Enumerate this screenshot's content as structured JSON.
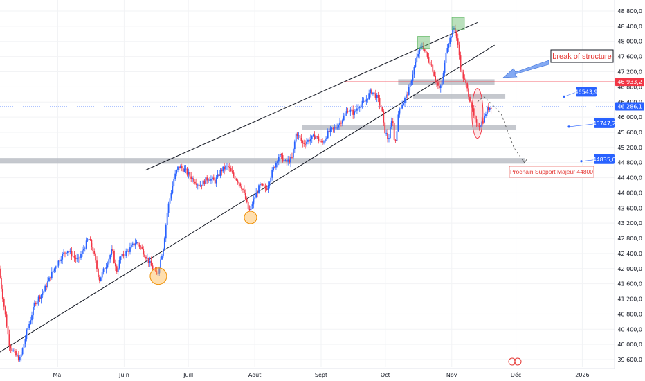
{
  "chart_data": {
    "type": "candlestick",
    "title": "",
    "xlabel": "",
    "ylabel": "",
    "ylim": [
      39500,
      48850
    ],
    "y_ticks": [
      "48 800,0",
      "48 400,0",
      "48 000,0",
      "47 600,0",
      "47 200,0",
      "46 800,0",
      "46 400,0",
      "46 000,0",
      "45 600,0",
      "45 200,0",
      "44 800,0",
      "44 400,0",
      "44 000,0",
      "43 600,0",
      "43 200,0",
      "42 800,0",
      "42 400,0",
      "42 000,0",
      "41 600,0",
      "41 200,0",
      "40 800,0",
      "40 400,0",
      "40 000,0",
      "39 600,0"
    ],
    "x_ticks": [
      {
        "label": "Mai",
        "day": 36
      },
      {
        "label": "Juin",
        "day": 67
      },
      {
        "label": "Juill",
        "day": 97
      },
      {
        "label": "Août",
        "day": 128
      },
      {
        "label": "Sept",
        "day": 159
      },
      {
        "label": "Oct",
        "day": 189
      },
      {
        "label": "Nov",
        "day": 220
      },
      {
        "label": "Déc",
        "day": 250
      },
      {
        "label": "2026",
        "day": 281
      }
    ],
    "x_range": [
      9,
      287
    ],
    "bars_x_range": [
      9,
      239
    ],
    "path_anchors": [
      [
        9,
        42000
      ],
      [
        11,
        41200
      ],
      [
        14,
        40000
      ],
      [
        17,
        39700
      ],
      [
        19,
        39600
      ],
      [
        22,
        40300
      ],
      [
        26,
        41100
      ],
      [
        30,
        41400
      ],
      [
        34,
        41900
      ],
      [
        38,
        42300
      ],
      [
        41,
        42500
      ],
      [
        46,
        42200
      ],
      [
        51,
        42800
      ],
      [
        53,
        42500
      ],
      [
        56,
        41700
      ],
      [
        60,
        42200
      ],
      [
        62,
        42500
      ],
      [
        64,
        41900
      ],
      [
        66,
        42300
      ],
      [
        70,
        42500
      ],
      [
        73,
        42700
      ],
      [
        75,
        42600
      ],
      [
        77,
        42400
      ],
      [
        80,
        42100
      ],
      [
        83,
        41800
      ],
      [
        86,
        42600
      ],
      [
        88,
        43600
      ],
      [
        91,
        44400
      ],
      [
        93,
        44700
      ],
      [
        96,
        44600
      ],
      [
        99,
        44400
      ],
      [
        103,
        44200
      ],
      [
        107,
        44400
      ],
      [
        110,
        44300
      ],
      [
        113,
        44600
      ],
      [
        116,
        44700
      ],
      [
        118,
        44500
      ],
      [
        121,
        44300
      ],
      [
        123,
        44100
      ],
      [
        126,
        43500
      ],
      [
        128,
        43800
      ],
      [
        131,
        44200
      ],
      [
        134,
        44100
      ],
      [
        137,
        44600
      ],
      [
        140,
        45000
      ],
      [
        143,
        44800
      ],
      [
        146,
        44900
      ],
      [
        148,
        45600
      ],
      [
        151,
        45300
      ],
      [
        154,
        45400
      ],
      [
        157,
        45500
      ],
      [
        160,
        45300
      ],
      [
        163,
        45600
      ],
      [
        166,
        45700
      ],
      [
        169,
        45900
      ],
      [
        172,
        46200
      ],
      [
        175,
        46100
      ],
      [
        177,
        46300
      ],
      [
        180,
        46400
      ],
      [
        183,
        46700
      ],
      [
        186,
        46500
      ],
      [
        188,
        46200
      ],
      [
        189,
        45700
      ],
      [
        191,
        45400
      ],
      [
        193,
        46000
      ],
      [
        194,
        45200
      ],
      [
        196,
        46200
      ],
      [
        199,
        46500
      ],
      [
        201,
        46800
      ],
      [
        203,
        47300
      ],
      [
        205,
        47700
      ],
      [
        207,
        47900
      ],
      [
        209,
        47600
      ],
      [
        211,
        47400
      ],
      [
        213,
        47000
      ],
      [
        215,
        46700
      ],
      [
        217,
        47200
      ],
      [
        218,
        47800
      ],
      [
        220,
        48100
      ],
      [
        222,
        48400
      ],
      [
        224,
        47700
      ],
      [
        225,
        47200
      ],
      [
        227,
        46900
      ],
      [
        229,
        46500
      ],
      [
        231,
        46000
      ],
      [
        232,
        45800
      ],
      [
        234,
        45800
      ],
      [
        236,
        46000
      ],
      [
        237,
        46200
      ],
      [
        239,
        46286
      ]
    ],
    "up_color": "#2962ff",
    "down_color": "#f23645",
    "price_tags": [
      {
        "label": "46 933,2",
        "value": 46933.2,
        "color": "#f23645"
      },
      {
        "label": "46 286,1",
        "value": 46286.1,
        "color": "#2962ff"
      }
    ],
    "level_tags": [
      {
        "label": "46543,9",
        "value": 46543.9
      },
      {
        "label": "45747,2",
        "value": 45747.2
      },
      {
        "label": "44835,0",
        "value": 44835.0
      }
    ],
    "zones": [
      {
        "from_day": 195,
        "to_day": 240,
        "low": 46860,
        "high": 47000
      },
      {
        "from_day": 202,
        "to_day": 245,
        "low": 46480,
        "high": 46620
      },
      {
        "from_day": 150,
        "to_day": 250,
        "low": 45660,
        "high": 45800
      },
      {
        "from_day": 9,
        "to_day": 254,
        "low": 44770,
        "high": 44920
      }
    ],
    "channel": {
      "upper": [
        [
          77,
          44600
        ],
        [
          232,
          48500
        ]
      ],
      "lower": [
        [
          9,
          39800
        ],
        [
          240,
          47900
        ]
      ]
    },
    "red_line": {
      "from_day": 170,
      "to_day": 287,
      "value": 46933.2
    },
    "highlights": [
      {
        "kind": "orange-circle",
        "day": 83,
        "value": 41800
      },
      {
        "kind": "orange-circle",
        "day": 126,
        "value": 43350
      },
      {
        "kind": "green-box",
        "day": 207,
        "value": 47950
      },
      {
        "kind": "green-box",
        "day": 223,
        "value": 48450
      },
      {
        "kind": "red-ellipse",
        "day": 232,
        "value": 46100
      }
    ],
    "projection": [
      [
        232,
        46400
      ],
      [
        235,
        46550
      ],
      [
        243,
        46100
      ],
      [
        249,
        45200
      ],
      [
        254,
        44790
      ]
    ],
    "annotations": {
      "break_of_structure": "break of structure",
      "next_support": "Prochain Support Majeur 44800"
    }
  }
}
